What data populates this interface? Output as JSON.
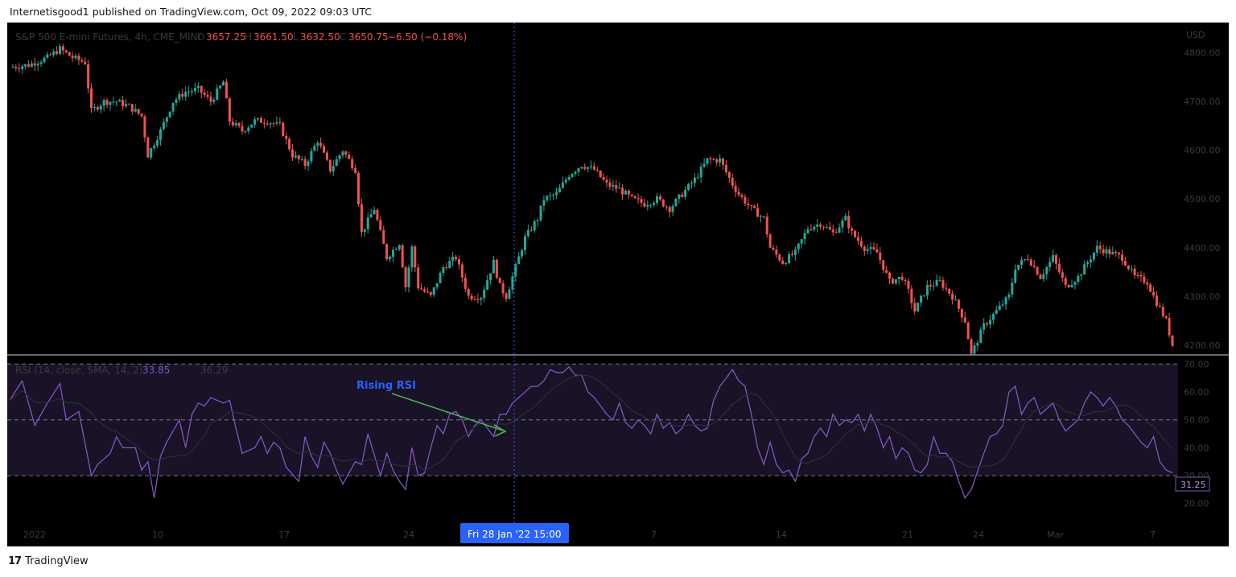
{
  "header": {
    "publish_line": "Internetisgood1 published on TradingView.com, Oct 09, 2022 09:03 UTC"
  },
  "footer": {
    "brand": "TradingView",
    "logo_glyph": "17"
  },
  "colors": {
    "up": "#26a69a",
    "down": "#ef5350",
    "rsi": "#7e57c2",
    "rsi_band": "#1a1226",
    "crosshair": "#2962ff",
    "annotation_arrow": "#4caf50",
    "annotation_text": "#2962ff"
  },
  "chart_data": [
    {
      "type": "candlestick",
      "title": "S&P 500 E-mini Futures, 4h, CME_MINI",
      "ohlc_label": {
        "o": "O",
        "o_val": "3657.25",
        "h": "H",
        "h_val": "3661.50",
        "l": "L",
        "l_val": "3632.50",
        "c": "C",
        "c_val": "3650.75",
        "change": "−6.50 (−0.18%)"
      },
      "currency": "USD",
      "y_ticks": [
        "4800.00",
        "4700.00",
        "4600.00",
        "4500.00",
        "4400.00",
        "4300.00",
        "4200.00"
      ],
      "ylim": [
        4180,
        4862
      ],
      "close_path": [
        [
          0,
          4770
        ],
        [
          6,
          4775
        ],
        [
          12,
          4790
        ],
        [
          16,
          4808
        ],
        [
          20,
          4790
        ],
        [
          24,
          4780
        ],
        [
          26,
          4680
        ],
        [
          30,
          4700
        ],
        [
          34,
          4700
        ],
        [
          38,
          4690
        ],
        [
          40,
          4680
        ],
        [
          42,
          4670
        ],
        [
          44,
          4590
        ],
        [
          48,
          4640
        ],
        [
          52,
          4700
        ],
        [
          56,
          4720
        ],
        [
          60,
          4725
        ],
        [
          64,
          4700
        ],
        [
          68,
          4740
        ],
        [
          70,
          4660
        ],
        [
          74,
          4640
        ],
        [
          78,
          4660
        ],
        [
          82,
          4660
        ],
        [
          86,
          4650
        ],
        [
          90,
          4590
        ],
        [
          94,
          4570
        ],
        [
          98,
          4620
        ],
        [
          102,
          4560
        ],
        [
          106,
          4600
        ],
        [
          110,
          4560
        ],
        [
          112,
          4430
        ],
        [
          116,
          4480
        ],
        [
          120,
          4380
        ],
        [
          124,
          4410
        ],
        [
          126,
          4320
        ],
        [
          128,
          4400
        ],
        [
          130,
          4320
        ],
        [
          134,
          4300
        ],
        [
          138,
          4360
        ],
        [
          142,
          4380
        ],
        [
          146,
          4300
        ],
        [
          150,
          4300
        ],
        [
          154,
          4370
        ],
        [
          156,
          4320
        ],
        [
          158,
          4300
        ],
        [
          160,
          4340
        ],
        [
          164,
          4420
        ],
        [
          168,
          4460
        ],
        [
          170,
          4500
        ],
        [
          174,
          4510
        ],
        [
          178,
          4550
        ],
        [
          182,
          4570
        ],
        [
          186,
          4560
        ],
        [
          190,
          4530
        ],
        [
          194,
          4520
        ],
        [
          198,
          4500
        ],
        [
          202,
          4490
        ],
        [
          206,
          4500
        ],
        [
          210,
          4480
        ],
        [
          214,
          4510
        ],
        [
          218,
          4540
        ],
        [
          222,
          4580
        ],
        [
          226,
          4580
        ],
        [
          230,
          4530
        ],
        [
          232,
          4510
        ],
        [
          236,
          4480
        ],
        [
          240,
          4460
        ],
        [
          242,
          4400
        ],
        [
          246,
          4370
        ],
        [
          250,
          4390
        ],
        [
          254,
          4440
        ],
        [
          258,
          4450
        ],
        [
          262,
          4430
        ],
        [
          266,
          4460
        ],
        [
          268,
          4430
        ],
        [
          272,
          4400
        ],
        [
          276,
          4390
        ],
        [
          280,
          4330
        ],
        [
          284,
          4340
        ],
        [
          286,
          4310
        ],
        [
          288,
          4270
        ],
        [
          292,
          4320
        ],
        [
          296,
          4330
        ],
        [
          300,
          4300
        ],
        [
          304,
          4250
        ],
        [
          306,
          4180
        ],
        [
          310,
          4240
        ],
        [
          314,
          4270
        ],
        [
          318,
          4300
        ],
        [
          320,
          4360
        ],
        [
          324,
          4380
        ],
        [
          328,
          4340
        ],
        [
          332,
          4380
        ],
        [
          336,
          4320
        ],
        [
          340,
          4340
        ],
        [
          344,
          4380
        ],
        [
          346,
          4400
        ],
        [
          350,
          4390
        ],
        [
          354,
          4380
        ],
        [
          358,
          4340
        ],
        [
          362,
          4330
        ],
        [
          364,
          4300
        ],
        [
          368,
          4250
        ],
        [
          370,
          4200
        ]
      ],
      "crosshair_label": "Fri 28 Jan '22   15:00",
      "x_ticks": [
        "2022",
        "10",
        "17",
        "24",
        "7",
        "14",
        "21",
        "24",
        "Mar",
        "7"
      ]
    },
    {
      "type": "line",
      "title": "RSI (14, close, SMA, 14, 2)",
      "values_label": [
        "33.85",
        "36.29"
      ],
      "ylim": [
        13,
        73
      ],
      "y_ticks": [
        "70.00",
        "60.00",
        "50.00",
        "40.00",
        "30.00",
        "20.00"
      ],
      "bands": {
        "upper": 70,
        "middle": 50,
        "lower": 30
      },
      "last_value": "31.25",
      "rsi_points": [
        [
          0,
          57
        ],
        [
          4,
          64
        ],
        [
          8,
          48
        ],
        [
          12,
          56
        ],
        [
          16,
          63
        ],
        [
          18,
          50
        ],
        [
          22,
          53
        ],
        [
          26,
          30
        ],
        [
          28,
          34
        ],
        [
          32,
          38
        ],
        [
          34,
          44
        ],
        [
          36,
          40
        ],
        [
          40,
          40
        ],
        [
          42,
          32
        ],
        [
          44,
          35
        ],
        [
          46,
          22
        ],
        [
          48,
          37
        ],
        [
          50,
          42
        ],
        [
          54,
          50
        ],
        [
          56,
          40
        ],
        [
          58,
          52
        ],
        [
          60,
          56
        ],
        [
          62,
          55
        ],
        [
          64,
          58
        ],
        [
          68,
          56
        ],
        [
          70,
          57
        ],
        [
          72,
          47
        ],
        [
          74,
          38
        ],
        [
          78,
          40
        ],
        [
          80,
          44
        ],
        [
          82,
          38
        ],
        [
          84,
          42
        ],
        [
          86,
          40
        ],
        [
          88,
          33
        ],
        [
          92,
          28
        ],
        [
          94,
          44
        ],
        [
          96,
          37
        ],
        [
          98,
          33
        ],
        [
          100,
          42
        ],
        [
          102,
          38
        ],
        [
          104,
          32
        ],
        [
          106,
          27
        ],
        [
          110,
          35
        ],
        [
          112,
          34
        ],
        [
          114,
          45
        ],
        [
          118,
          30
        ],
        [
          120,
          38
        ],
        [
          122,
          32
        ],
        [
          124,
          28
        ],
        [
          126,
          25
        ],
        [
          128,
          40
        ],
        [
          130,
          30
        ],
        [
          132,
          31
        ],
        [
          134,
          40
        ],
        [
          136,
          48
        ],
        [
          138,
          45
        ],
        [
          140,
          52
        ],
        [
          142,
          53
        ],
        [
          144,
          50
        ],
        [
          146,
          44
        ],
        [
          148,
          48
        ],
        [
          150,
          50
        ],
        [
          152,
          47
        ],
        [
          154,
          44
        ],
        [
          156,
          52
        ],
        [
          158,
          52
        ],
        [
          160,
          56
        ],
        [
          162,
          58
        ],
        [
          164,
          60
        ],
        [
          166,
          62
        ],
        [
          168,
          62
        ],
        [
          170,
          64
        ],
        [
          172,
          68
        ],
        [
          174,
          67
        ],
        [
          176,
          67
        ],
        [
          178,
          69
        ],
        [
          180,
          66
        ],
        [
          182,
          66
        ],
        [
          184,
          60
        ],
        [
          186,
          58
        ],
        [
          188,
          55
        ],
        [
          190,
          52
        ],
        [
          192,
          50
        ],
        [
          194,
          56
        ],
        [
          196,
          49
        ],
        [
          198,
          47
        ],
        [
          200,
          50
        ],
        [
          202,
          48
        ],
        [
          204,
          45
        ],
        [
          206,
          52
        ],
        [
          208,
          47
        ],
        [
          210,
          49
        ],
        [
          212,
          45
        ],
        [
          214,
          47
        ],
        [
          216,
          52
        ],
        [
          218,
          48
        ],
        [
          220,
          46
        ],
        [
          222,
          47
        ],
        [
          224,
          57
        ],
        [
          226,
          62
        ],
        [
          228,
          65
        ],
        [
          230,
          68
        ],
        [
          232,
          64
        ],
        [
          234,
          62
        ],
        [
          236,
          52
        ],
        [
          238,
          40
        ],
        [
          240,
          34
        ],
        [
          242,
          42
        ],
        [
          244,
          34
        ],
        [
          246,
          31
        ],
        [
          248,
          32
        ],
        [
          250,
          28
        ],
        [
          252,
          36
        ],
        [
          254,
          38
        ],
        [
          256,
          44
        ],
        [
          258,
          47
        ],
        [
          260,
          44
        ],
        [
          262,
          52
        ],
        [
          264,
          48
        ],
        [
          266,
          50
        ],
        [
          268,
          49
        ],
        [
          270,
          52
        ],
        [
          272,
          46
        ],
        [
          274,
          52
        ],
        [
          276,
          47
        ],
        [
          278,
          40
        ],
        [
          280,
          44
        ],
        [
          282,
          36
        ],
        [
          284,
          40
        ],
        [
          286,
          38
        ],
        [
          288,
          32
        ],
        [
          290,
          31
        ],
        [
          292,
          34
        ],
        [
          294,
          44
        ],
        [
          296,
          38
        ],
        [
          298,
          38
        ],
        [
          300,
          35
        ],
        [
          302,
          28
        ],
        [
          304,
          22
        ],
        [
          306,
          25
        ],
        [
          310,
          38
        ],
        [
          312,
          44
        ],
        [
          314,
          45
        ],
        [
          316,
          48
        ],
        [
          318,
          60
        ],
        [
          320,
          62
        ],
        [
          322,
          52
        ],
        [
          324,
          56
        ],
        [
          326,
          58
        ],
        [
          328,
          52
        ],
        [
          330,
          54
        ],
        [
          332,
          56
        ],
        [
          334,
          50
        ],
        [
          336,
          46
        ],
        [
          338,
          48
        ],
        [
          340,
          50
        ],
        [
          342,
          56
        ],
        [
          344,
          60
        ],
        [
          346,
          58
        ],
        [
          348,
          55
        ],
        [
          350,
          58
        ],
        [
          352,
          55
        ],
        [
          354,
          50
        ],
        [
          356,
          48
        ],
        [
          358,
          45
        ],
        [
          360,
          42
        ],
        [
          362,
          40
        ],
        [
          364,
          44
        ],
        [
          366,
          35
        ],
        [
          368,
          32
        ],
        [
          370,
          31
        ]
      ],
      "annotation": "Rising RSI",
      "x_ticks": [
        "2022",
        "10",
        "17",
        "24",
        "7",
        "14",
        "21",
        "24",
        "Mar",
        "7"
      ]
    }
  ]
}
